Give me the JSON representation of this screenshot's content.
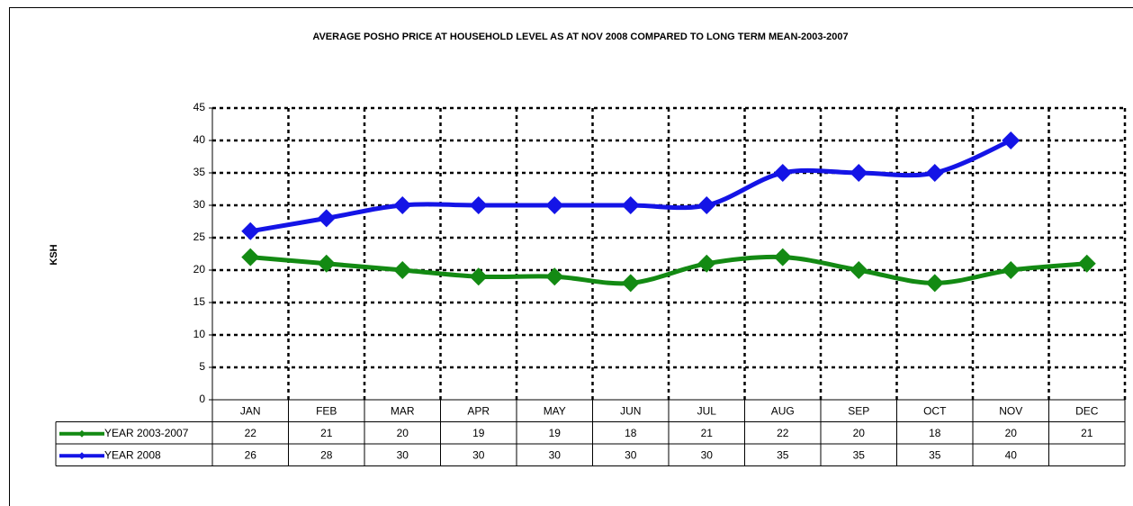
{
  "chart_data": {
    "type": "line",
    "title": "AVERAGE POSHO PRICE AT HOUSEHOLD LEVEL AS AT NOV 2008 COMPARED TO LONG TERM MEAN-2003-2007",
    "y_label": "KSH",
    "categories": [
      "JAN",
      "FEB",
      "MAR",
      "APR",
      "MAY",
      "JUN",
      "JUL",
      "AUG",
      "SEP",
      "OCT",
      "NOV",
      "DEC"
    ],
    "series": [
      {
        "name": "YEAR 2003-2007",
        "color": "#138a13",
        "values": [
          22,
          21,
          20,
          19,
          19,
          18,
          21,
          22,
          20,
          18,
          20,
          21
        ]
      },
      {
        "name": "YEAR 2008",
        "color": "#1414e6",
        "values": [
          26,
          28,
          30,
          30,
          30,
          30,
          30,
          35,
          35,
          35,
          40,
          null
        ]
      }
    ],
    "ylim": [
      0,
      45
    ],
    "yticks": [
      0,
      5,
      10,
      15,
      20,
      25,
      30,
      35,
      40,
      45
    ],
    "grid": true,
    "smooth": true
  }
}
